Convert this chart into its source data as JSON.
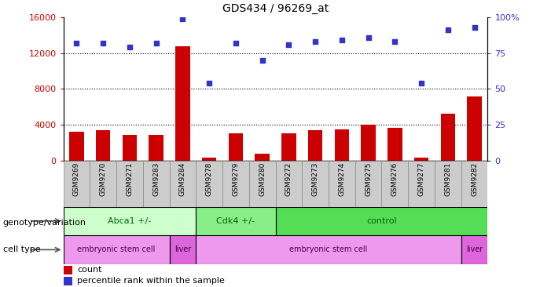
{
  "title": "GDS434 / 96269_at",
  "samples": [
    "GSM9269",
    "GSM9270",
    "GSM9271",
    "GSM9283",
    "GSM9284",
    "GSM9278",
    "GSM9279",
    "GSM9280",
    "GSM9272",
    "GSM9273",
    "GSM9274",
    "GSM9275",
    "GSM9276",
    "GSM9277",
    "GSM9281",
    "GSM9282"
  ],
  "counts": [
    3200,
    3400,
    2900,
    2900,
    12800,
    350,
    3100,
    800,
    3100,
    3400,
    3500,
    4000,
    3700,
    350,
    5200,
    7200
  ],
  "percentiles": [
    82,
    82,
    79,
    82,
    99,
    54,
    82,
    70,
    81,
    83,
    84,
    86,
    83,
    54,
    91,
    93
  ],
  "ylim_left": [
    0,
    16000
  ],
  "ylim_right": [
    0,
    100
  ],
  "yticks_left": [
    0,
    4000,
    8000,
    12000,
    16000
  ],
  "yticks_right": [
    0,
    25,
    50,
    75,
    100
  ],
  "bar_color": "#cc0000",
  "dot_color": "#3333cc",
  "genotype_groups": [
    {
      "label": "Abca1 +/-",
      "start": 0,
      "end": 5,
      "color": "#ccffcc"
    },
    {
      "label": "Cdk4 +/-",
      "start": 5,
      "end": 8,
      "color": "#88ee88"
    },
    {
      "label": "control",
      "start": 8,
      "end": 16,
      "color": "#55dd55"
    }
  ],
  "celltype_groups": [
    {
      "label": "embryonic stem cell",
      "start": 0,
      "end": 4,
      "color": "#ee99ee"
    },
    {
      "label": "liver",
      "start": 4,
      "end": 5,
      "color": "#dd66dd"
    },
    {
      "label": "embryonic stem cell",
      "start": 5,
      "end": 15,
      "color": "#ee99ee"
    },
    {
      "label": "liver",
      "start": 15,
      "end": 16,
      "color": "#dd66dd"
    }
  ],
  "legend_count_label": "count",
  "legend_pct_label": "percentile rank within the sample",
  "xlabel_genotype": "genotype/variation",
  "xlabel_celltype": "cell type",
  "background_color": "#ffffff",
  "tick_label_color_left": "#cc0000",
  "tick_label_color_right": "#3333cc",
  "xtick_bg_color": "#cccccc",
  "xtick_border_color": "#888888"
}
